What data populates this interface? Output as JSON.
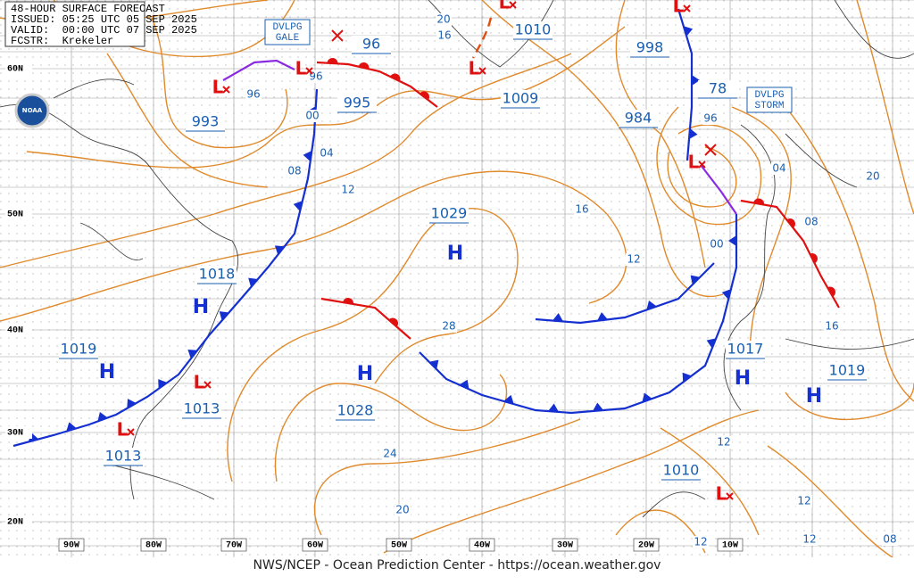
{
  "header": {
    "lines": [
      "48-HOUR SURFACE FORECAST",
      "ISSUED: 05:25 UTC 05 SEP 2025",
      "VALID:  00:00 UTC 07 SEP 2025",
      "FCSTR:  Krekeler"
    ]
  },
  "logo": "NOAA",
  "warnings": [
    {
      "line1": "DVLPG",
      "line2": "GALE"
    },
    {
      "line1": "DVLPG",
      "line2": "STORM"
    }
  ],
  "boxed_pressures": [
    "993",
    "96",
    "995",
    "1010",
    "1009",
    "998",
    "78",
    "984",
    "1029",
    "1018",
    "1019",
    "1013",
    "1013",
    "1028",
    "1017",
    "1019",
    "1010"
  ],
  "isobar_labels": [
    "20",
    "16",
    "96",
    "96",
    "00",
    "04",
    "08",
    "12",
    "16",
    "12",
    "28",
    "24",
    "20",
    "96",
    "04",
    "08",
    "00",
    "20",
    "16",
    "12",
    "12",
    "12",
    "12",
    "08"
  ],
  "highs": [
    "H",
    "H",
    "H",
    "H",
    "H",
    "H"
  ],
  "lows": [
    "L",
    "L",
    "L",
    "L",
    "L",
    "L",
    "L",
    "L",
    "L"
  ],
  "lat_labels": [
    "60N",
    "50N",
    "40N",
    "30N",
    "20N"
  ],
  "lon_labels": [
    "90W",
    "80W",
    "70W",
    "60W",
    "50W",
    "40W",
    "30W",
    "20W",
    "10W"
  ],
  "footer": "NWS/NCEP - Ocean Prediction Center - https://ocean.weather.gov"
}
